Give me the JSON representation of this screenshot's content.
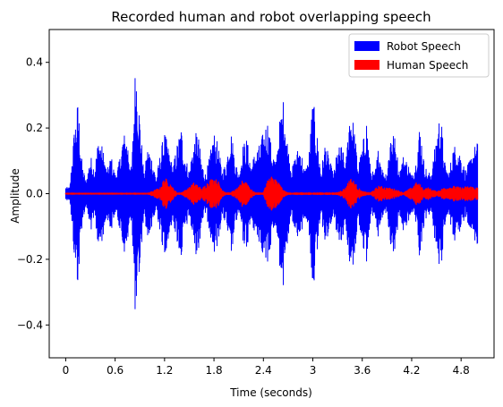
{
  "chart_data": {
    "type": "line",
    "title": "Recorded human and robot overlapping speech",
    "xlabel": "Time (seconds)",
    "ylabel": "Amplitude",
    "xlim": [
      -0.2,
      5.2
    ],
    "ylim": [
      -0.5,
      0.5
    ],
    "xticks": [
      0,
      0.6,
      1.2,
      1.8,
      2.4,
      3.0,
      3.6,
      4.2,
      4.8
    ],
    "xtick_labels": [
      "0",
      "0.6",
      "1.2",
      "1.8",
      "2.4",
      "3",
      "3.6",
      "4.2",
      "4.8"
    ],
    "yticks": [
      -0.4,
      -0.2,
      0.0,
      0.2,
      0.4
    ],
    "ytick_labels": [
      "−0.4",
      "−0.2",
      "0.0",
      "0.2",
      "0.4"
    ],
    "grid": false,
    "legend_position": "top-right",
    "series": [
      {
        "name": "Robot Speech",
        "color": "#0000ff",
        "representation": "amplitude envelope (symmetric about 0)",
        "x": [
          0.0,
          0.05,
          0.1,
          0.15,
          0.2,
          0.25,
          0.3,
          0.35,
          0.4,
          0.45,
          0.5,
          0.55,
          0.6,
          0.65,
          0.7,
          0.75,
          0.8,
          0.85,
          0.9,
          0.95,
          1.0,
          1.05,
          1.1,
          1.15,
          1.2,
          1.25,
          1.3,
          1.35,
          1.4,
          1.45,
          1.5,
          1.55,
          1.6,
          1.65,
          1.7,
          1.75,
          1.8,
          1.85,
          1.9,
          1.95,
          2.0,
          2.05,
          2.1,
          2.15,
          2.2,
          2.25,
          2.3,
          2.35,
          2.4,
          2.45,
          2.5,
          2.55,
          2.6,
          2.65,
          2.7,
          2.75,
          2.8,
          2.85,
          2.9,
          2.95,
          3.0,
          3.05,
          3.1,
          3.15,
          3.2,
          3.25,
          3.3,
          3.35,
          3.4,
          3.45,
          3.5,
          3.55,
          3.6,
          3.65,
          3.7,
          3.75,
          3.8,
          3.85,
          3.9,
          3.95,
          4.0,
          4.05,
          4.1,
          4.15,
          4.2,
          4.25,
          4.3,
          4.35,
          4.4,
          4.45,
          4.5,
          4.55,
          4.6,
          4.65,
          4.7,
          4.75,
          4.8,
          4.85,
          4.9,
          4.95,
          5.0
        ],
        "y": [
          0.02,
          0.02,
          0.19,
          0.29,
          0.09,
          0.04,
          0.12,
          0.08,
          0.18,
          0.14,
          0.07,
          0.12,
          0.06,
          0.1,
          0.19,
          0.17,
          0.07,
          0.43,
          0.24,
          0.06,
          0.15,
          0.11,
          0.05,
          0.13,
          0.19,
          0.14,
          0.08,
          0.15,
          0.21,
          0.12,
          0.07,
          0.16,
          0.2,
          0.1,
          0.06,
          0.12,
          0.19,
          0.15,
          0.07,
          0.1,
          0.21,
          0.12,
          0.06,
          0.15,
          0.17,
          0.09,
          0.13,
          0.15,
          0.19,
          0.23,
          0.14,
          0.1,
          0.23,
          0.3,
          0.14,
          0.08,
          0.13,
          0.15,
          0.07,
          0.11,
          0.3,
          0.19,
          0.07,
          0.16,
          0.11,
          0.06,
          0.14,
          0.15,
          0.09,
          0.28,
          0.21,
          0.09,
          0.14,
          0.24,
          0.08,
          0.06,
          0.15,
          0.07,
          0.07,
          0.21,
          0.17,
          0.07,
          0.12,
          0.1,
          0.06,
          0.1,
          0.22,
          0.1,
          0.06,
          0.08,
          0.18,
          0.26,
          0.1,
          0.06,
          0.14,
          0.16,
          0.12,
          0.07,
          0.1,
          0.14,
          0.16
        ]
      },
      {
        "name": "Human Speech",
        "color": "#ff0000",
        "representation": "amplitude envelope (symmetric about 0)",
        "x": [
          0.0,
          0.5,
          1.0,
          1.15,
          1.2,
          1.25,
          1.3,
          1.35,
          1.4,
          1.5,
          1.55,
          1.6,
          1.65,
          1.7,
          1.75,
          1.8,
          1.85,
          1.9,
          1.95,
          2.0,
          2.1,
          2.15,
          2.2,
          2.25,
          2.3,
          2.4,
          2.45,
          2.5,
          2.55,
          2.6,
          2.65,
          2.7,
          2.8,
          2.9,
          3.0,
          3.1,
          3.2,
          3.3,
          3.4,
          3.45,
          3.5,
          3.55,
          3.6,
          3.7,
          3.8,
          3.9,
          4.0,
          4.1,
          4.2,
          4.25,
          4.3,
          4.35,
          4.4,
          4.5,
          4.6,
          4.7,
          4.8,
          4.9,
          5.0
        ],
        "y": [
          0.003,
          0.003,
          0.003,
          0.02,
          0.05,
          0.04,
          0.02,
          0.004,
          0.004,
          0.02,
          0.035,
          0.03,
          0.015,
          0.03,
          0.045,
          0.05,
          0.04,
          0.015,
          0.004,
          0.004,
          0.02,
          0.045,
          0.04,
          0.015,
          0.004,
          0.004,
          0.045,
          0.055,
          0.05,
          0.03,
          0.01,
          0.004,
          0.004,
          0.004,
          0.004,
          0.004,
          0.004,
          0.004,
          0.02,
          0.05,
          0.04,
          0.02,
          0.008,
          0.004,
          0.025,
          0.02,
          0.015,
          0.004,
          0.02,
          0.035,
          0.03,
          0.015,
          0.02,
          0.008,
          0.02,
          0.025,
          0.02,
          0.025,
          0.02
        ]
      }
    ]
  }
}
